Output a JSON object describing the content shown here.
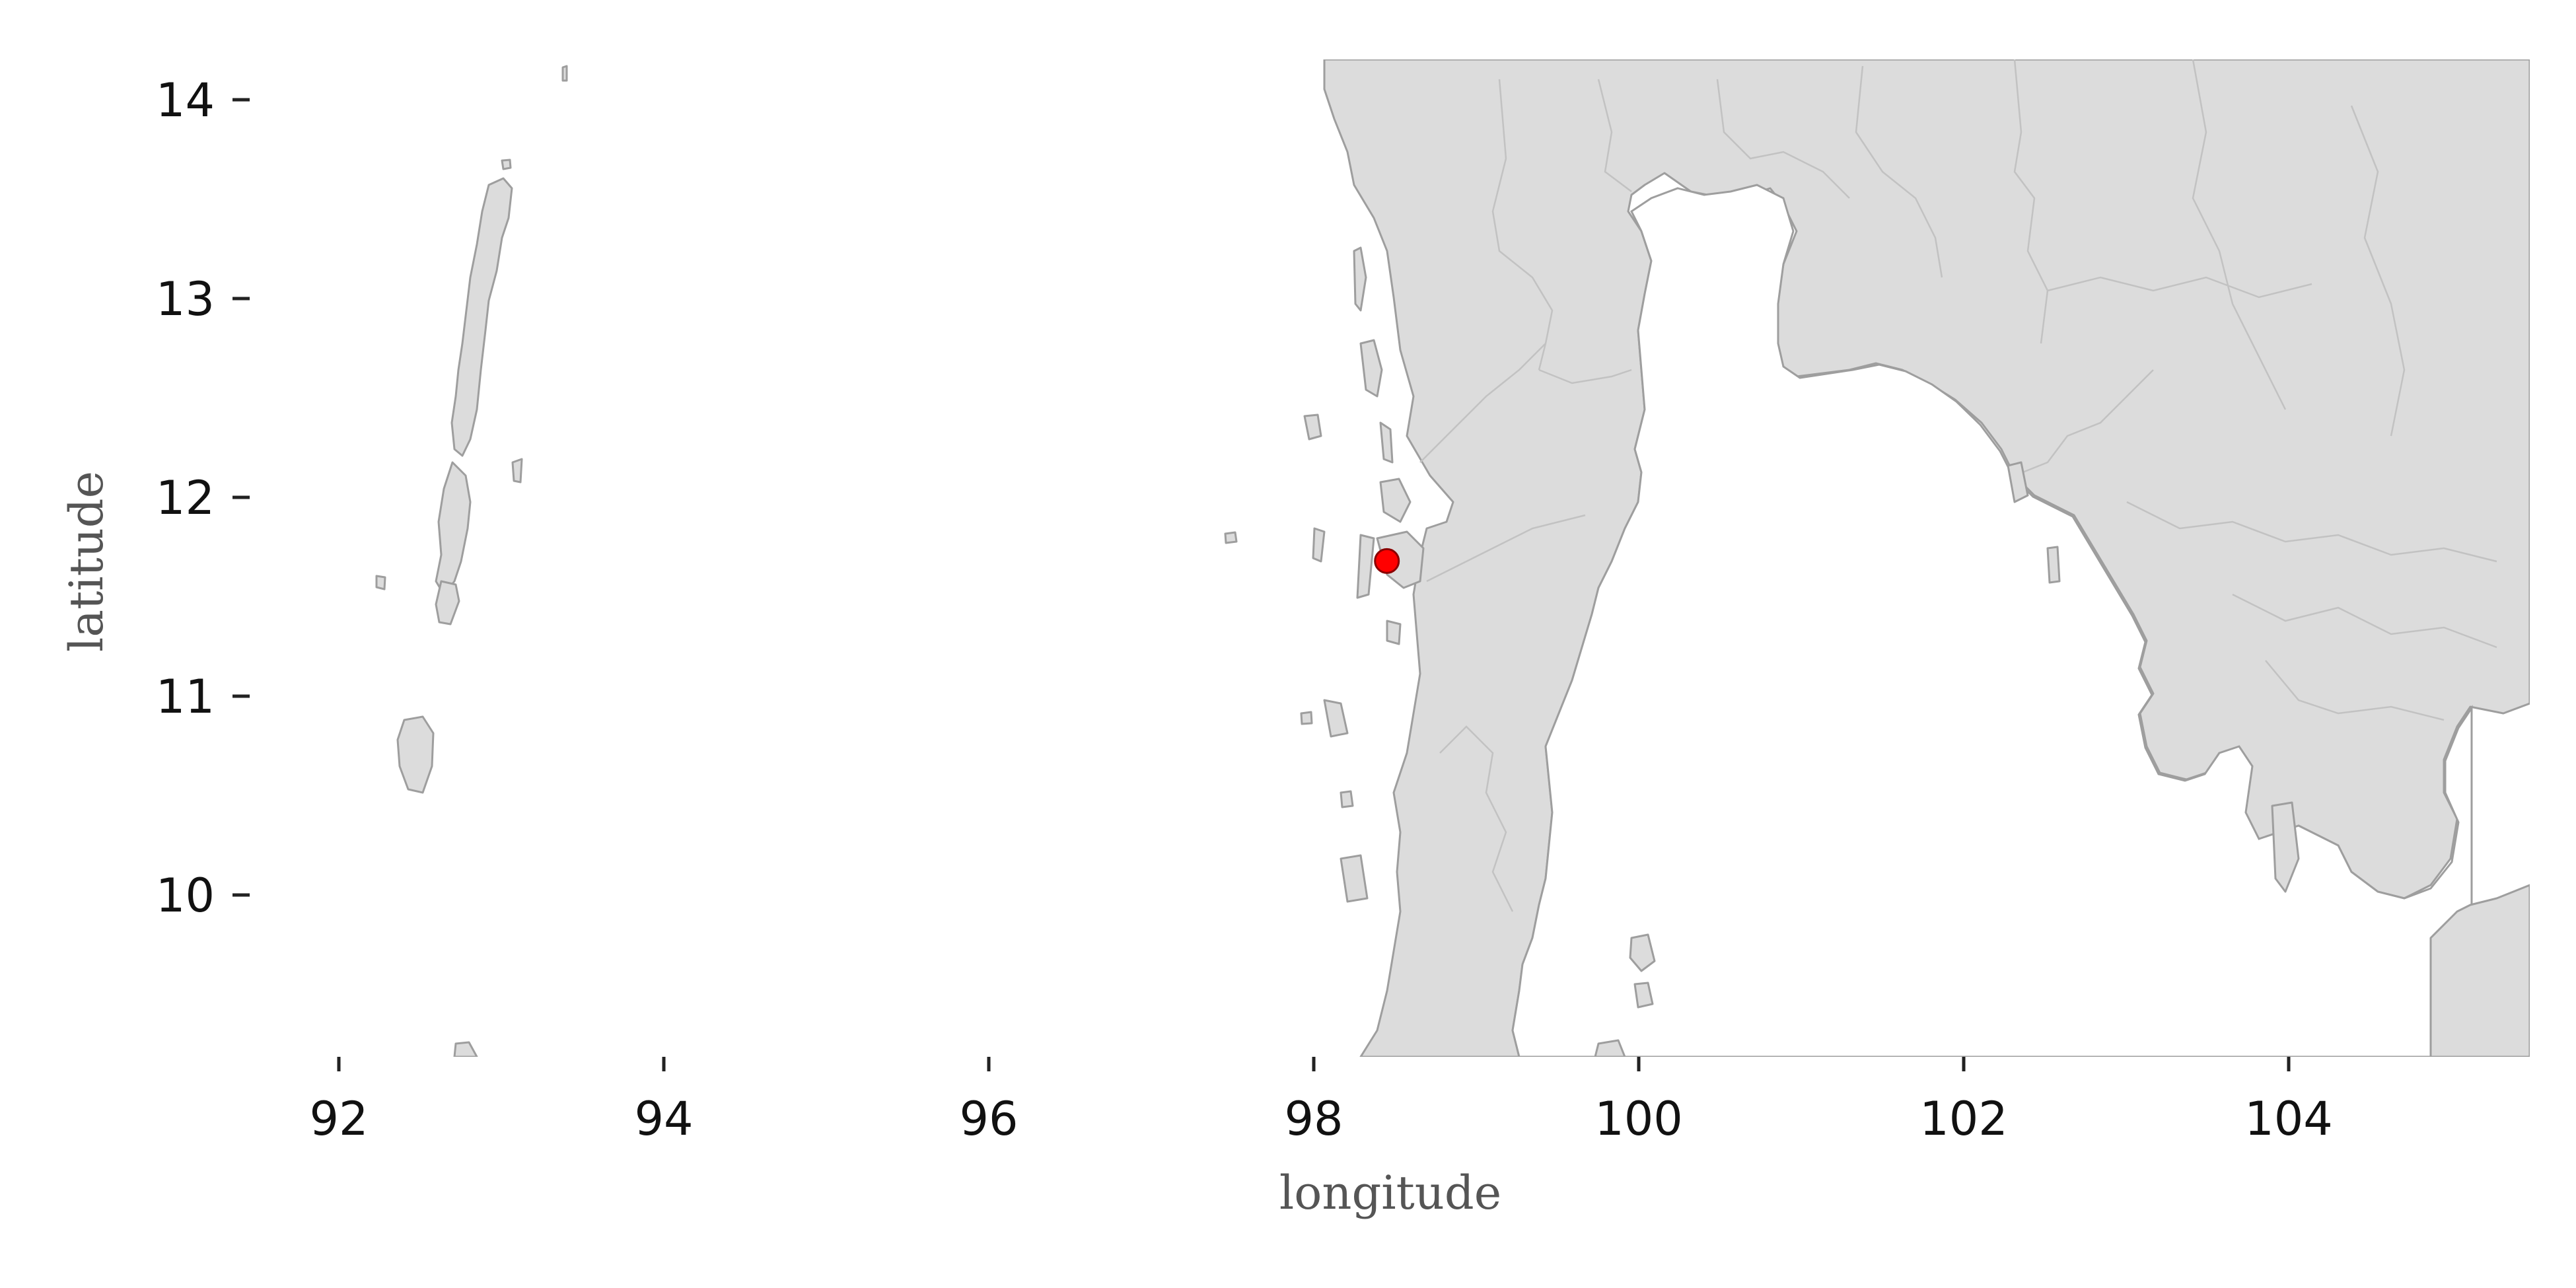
{
  "map": {
    "xlabel": "longitude",
    "ylabel": "latitude",
    "xlim": [
      91.6,
      105.5
    ],
    "ylim": [
      9.2,
      14.2
    ],
    "x_ticks": [
      92,
      94,
      96,
      98,
      100,
      102,
      104
    ],
    "y_ticks": [
      10,
      11,
      12,
      13,
      14
    ],
    "land_color": "#dcdcdc",
    "coast_color": "#9e9e9e",
    "border_color": "#c2c2c2",
    "marker": {
      "lon": 98.45,
      "lat": 11.68,
      "color": "#ff0000"
    }
  }
}
